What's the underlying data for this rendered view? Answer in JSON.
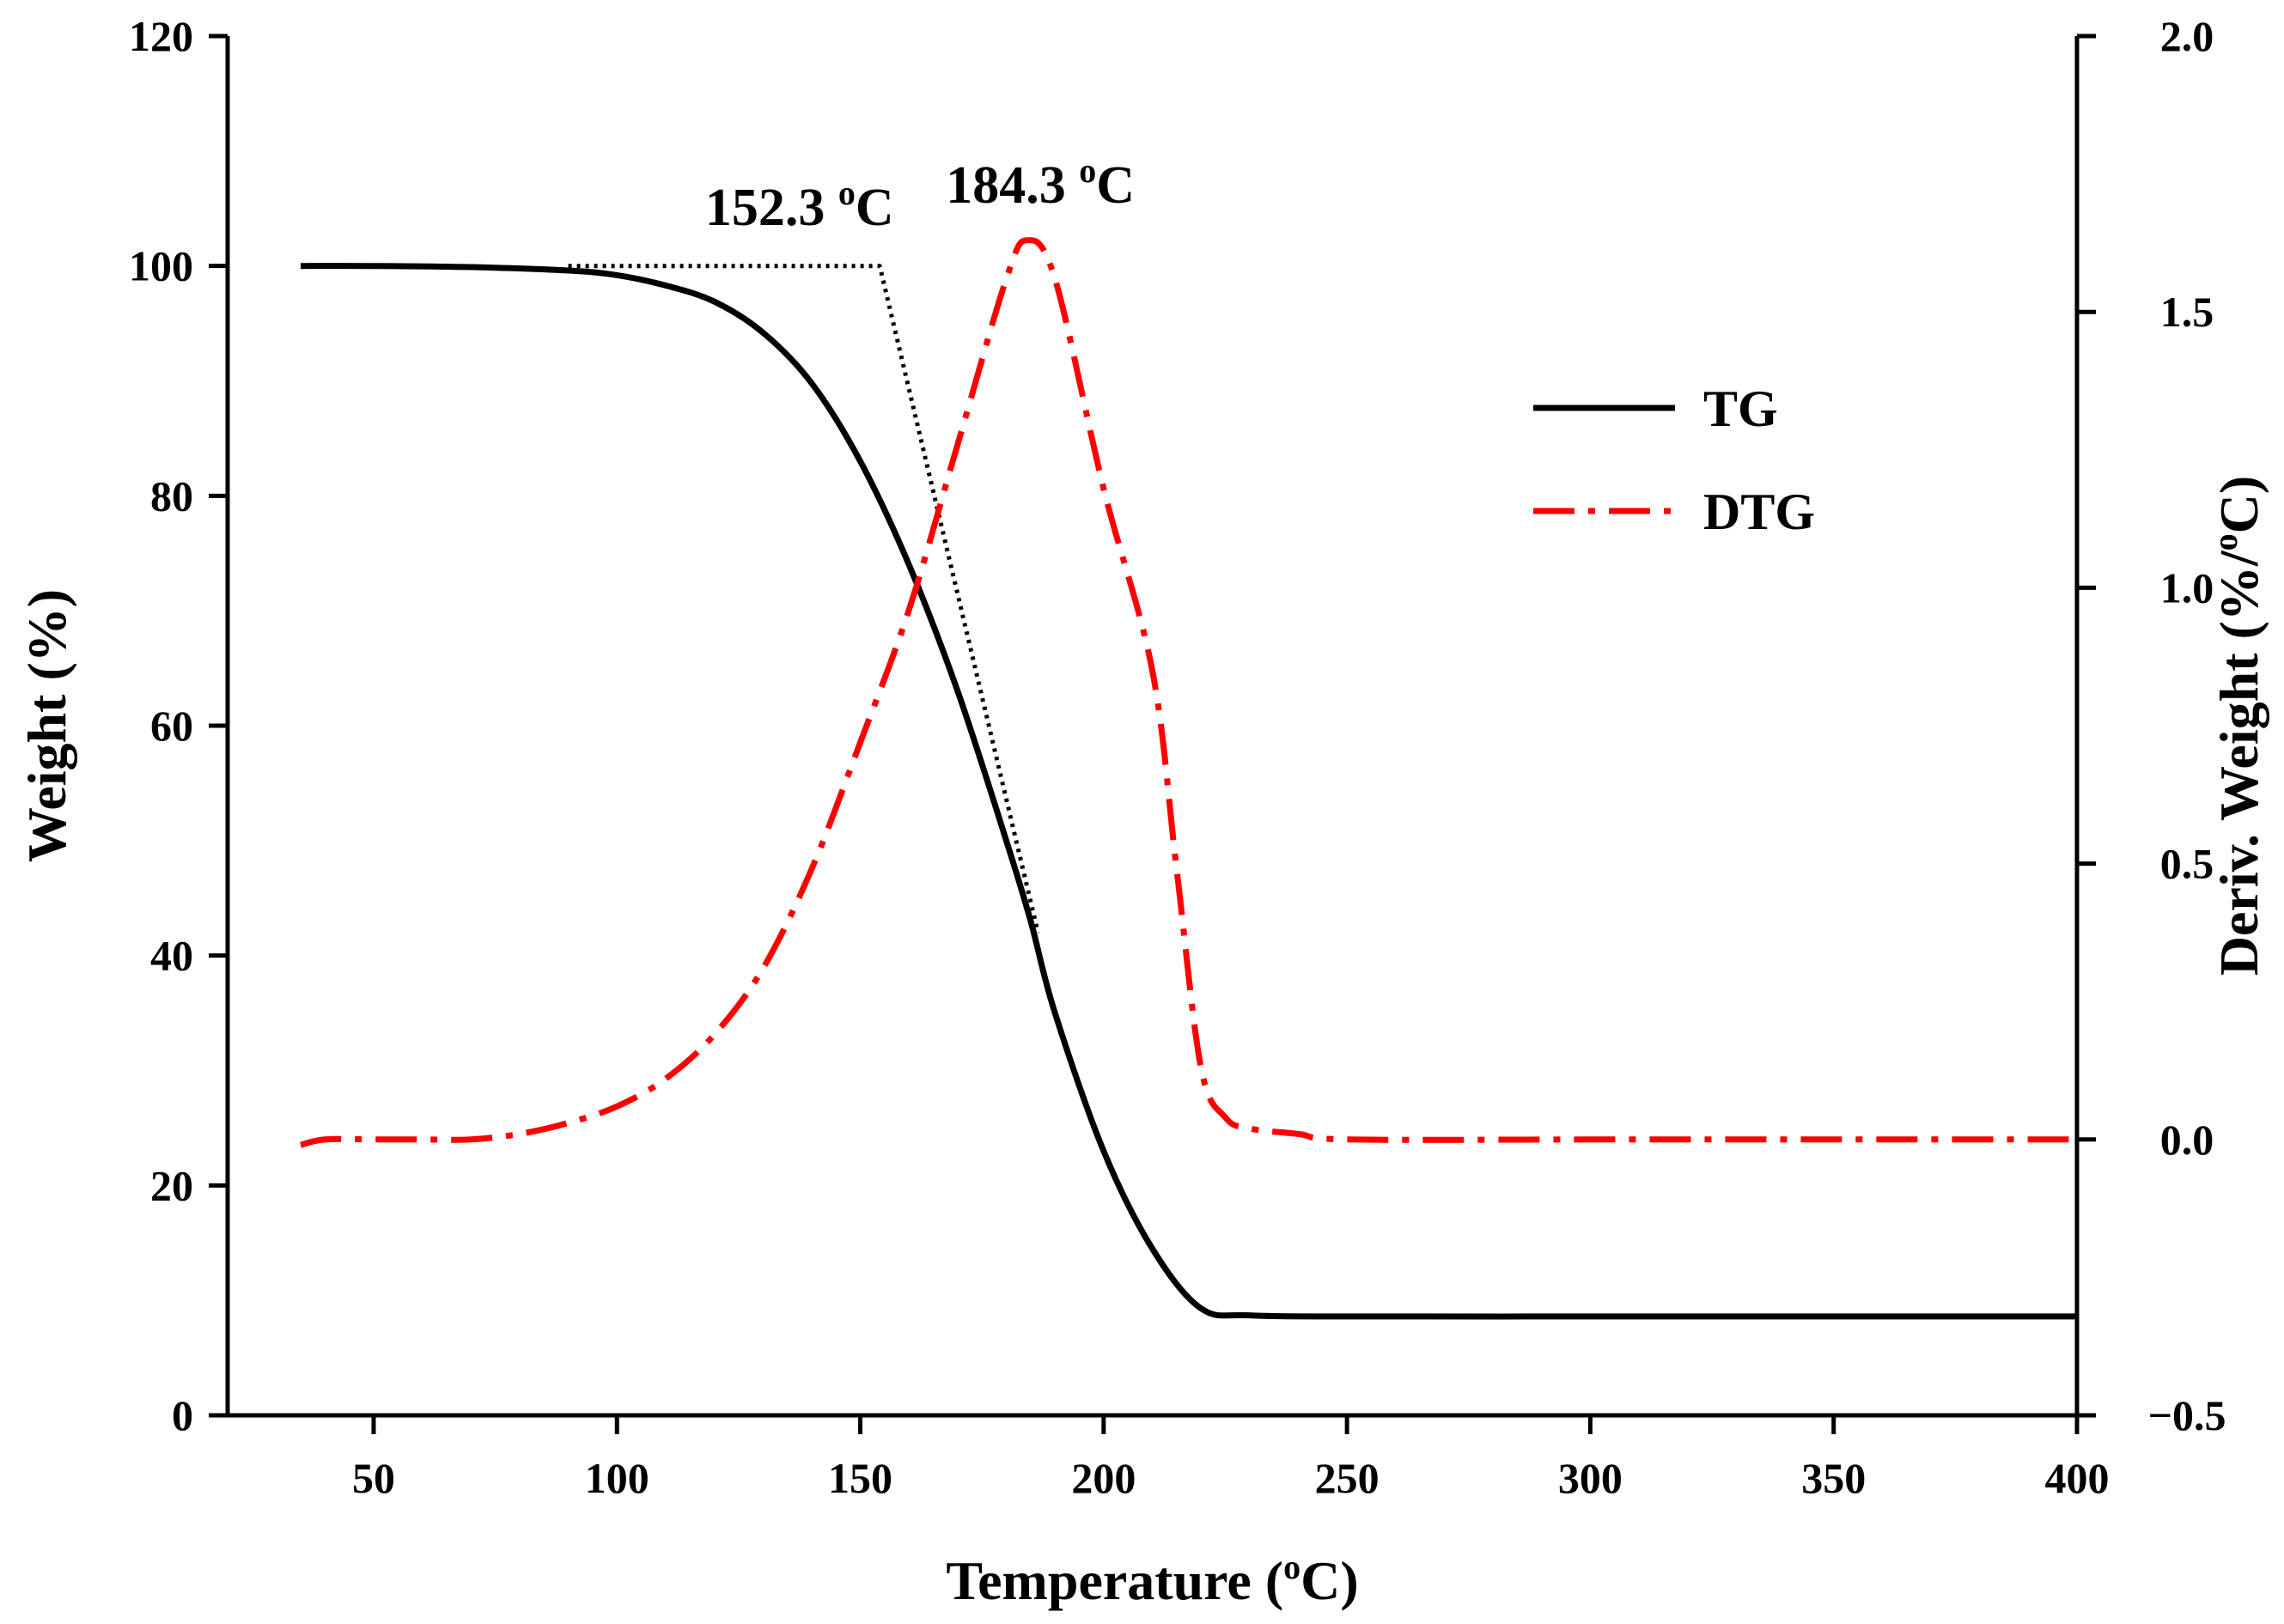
{
  "chart_data": {
    "type": "line",
    "title": "",
    "xlabel": {
      "prefix": "Temperature (",
      "sup": "o",
      "suffix": "C)"
    },
    "ylabel_left": "Weight (%)",
    "ylabel_right": {
      "prefix": "Deriv. Weight (%/",
      "sup": "o",
      "suffix": "C)"
    },
    "xlim": [
      20,
      400
    ],
    "ylim_left": [
      0,
      120
    ],
    "ylim_right": [
      -0.5,
      2.0
    ],
    "x_ticks": [
      50,
      100,
      150,
      200,
      250,
      300,
      350,
      400
    ],
    "x_tick_labels": [
      "50",
      "100",
      "150",
      "200",
      "250",
      "300",
      "350",
      "400"
    ],
    "y_left_ticks": [
      0,
      20,
      40,
      60,
      80,
      100,
      120
    ],
    "y_left_tick_labels": [
      "0",
      "20",
      "40",
      "60",
      "80",
      "100",
      "120"
    ],
    "y_right_ticks": [
      -0.5,
      0.0,
      0.5,
      1.0,
      1.5,
      2.0
    ],
    "y_right_tick_labels": [
      "−0.5",
      "0.0",
      "0.5",
      "1.0",
      "1.5",
      "2.0"
    ],
    "legend_position": "top-right",
    "series": [
      {
        "name": "TG",
        "axis": "left",
        "color": "#000000",
        "style": "solid",
        "x": [
          35,
          50,
          70,
          90,
          100,
          110,
          120,
          130,
          140,
          150,
          160,
          170,
          180,
          185,
          190,
          200,
          210,
          220,
          230,
          250,
          300,
          350,
          400
        ],
        "y": [
          100,
          100,
          99.9,
          99.6,
          99.2,
          98.3,
          96.9,
          94.2,
          89.8,
          83.0,
          74.0,
          63.0,
          50.0,
          43.0,
          35.0,
          23.0,
          14.5,
          9.3,
          8.7,
          8.6,
          8.6,
          8.6,
          8.6
        ]
      },
      {
        "name": "DTG",
        "axis": "right",
        "color": "#ff0000",
        "style": "dash-dot",
        "x": [
          35,
          40,
          50,
          60,
          70,
          80,
          90,
          100,
          110,
          120,
          130,
          140,
          150,
          160,
          170,
          180,
          184.3,
          190,
          200,
          210,
          215,
          220,
          225,
          230,
          240,
          250,
          300,
          350,
          400
        ],
        "y": [
          -0.01,
          0.0,
          0.0,
          0.0,
          0.0,
          0.01,
          0.03,
          0.06,
          0.11,
          0.19,
          0.31,
          0.49,
          0.72,
          0.96,
          1.26,
          1.56,
          1.63,
          1.56,
          1.18,
          0.85,
          0.49,
          0.13,
          0.04,
          0.02,
          0.01,
          0.0,
          0.0,
          0.0,
          0.0
        ]
      },
      {
        "name": "onset tangent",
        "axis": "left",
        "color": "#000000",
        "style": "dotted",
        "x": [
          90,
          154,
          186.5
        ],
        "y": [
          100,
          100,
          42
        ]
      }
    ],
    "annotations": [
      {
        "text": "152.3",
        "sup": "o",
        "unit": "C",
        "x": 152.3,
        "y": 100
      },
      {
        "text": "184.3",
        "sup": "o",
        "unit": "C",
        "x": 184.3,
        "y": 1.63
      }
    ]
  }
}
